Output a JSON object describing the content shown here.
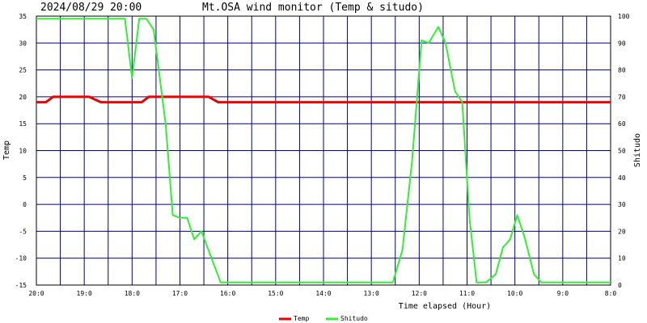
{
  "header": {
    "timestamp": "2024/08/29 20:00",
    "title": "Mt.OSA wind monitor (Temp & situdo)"
  },
  "chart_data": {
    "type": "line",
    "xlabel": "Time elapsed (Hour)",
    "ylabel_left": "Temp",
    "ylabel_right": "Shitudo",
    "x_range": [
      0,
      12
    ],
    "x_direction": "reversed (20:0 at left, 8:0 at right)",
    "x_tick_labels": [
      "20:0",
      "19:0",
      "18:0",
      "17:0",
      "16:0",
      "15:0",
      "14:0",
      "13:0",
      "12:0",
      "11:0",
      "10:0",
      "9:0",
      "8:0"
    ],
    "y_left_range": [
      -15,
      35
    ],
    "y_left_ticks": [
      "35",
      "30",
      "25",
      "20",
      "15",
      "10",
      "5",
      "0",
      "-5",
      "-10",
      "-15"
    ],
    "y_right_range": [
      0,
      100
    ],
    "y_right_ticks": [
      "100",
      "90",
      "80",
      "70",
      "60",
      "50",
      "40",
      "30",
      "20",
      "10",
      "0"
    ],
    "grid": true,
    "legend_position": "bottom-center",
    "series": [
      {
        "name": "Temp",
        "axis": "left",
        "color": "#ee0000",
        "points": [
          [
            0,
            19
          ],
          [
            0.2,
            19
          ],
          [
            0.35,
            20
          ],
          [
            1.1,
            20
          ],
          [
            1.35,
            19
          ],
          [
            2.2,
            19
          ],
          [
            2.35,
            20
          ],
          [
            3.6,
            20
          ],
          [
            3.8,
            19
          ],
          [
            12,
            19
          ]
        ]
      },
      {
        "name": "Shitudo",
        "axis": "right",
        "color": "#33ee33",
        "points": [
          [
            0,
            99
          ],
          [
            1.85,
            99
          ],
          [
            2.0,
            77
          ],
          [
            2.15,
            99
          ],
          [
            2.3,
            99
          ],
          [
            2.45,
            95
          ],
          [
            2.7,
            60
          ],
          [
            2.85,
            26
          ],
          [
            3.0,
            25
          ],
          [
            3.15,
            25
          ],
          [
            3.3,
            17
          ],
          [
            3.45,
            20
          ],
          [
            3.85,
            1
          ],
          [
            7.45,
            1
          ],
          [
            7.65,
            13
          ],
          [
            7.85,
            46
          ],
          [
            8.05,
            91
          ],
          [
            8.2,
            90
          ],
          [
            8.4,
            96
          ],
          [
            8.55,
            90
          ],
          [
            8.75,
            72
          ],
          [
            8.9,
            68
          ],
          [
            9.05,
            25
          ],
          [
            9.2,
            1
          ],
          [
            9.4,
            1
          ],
          [
            9.6,
            4
          ],
          [
            9.75,
            14
          ],
          [
            9.9,
            17
          ],
          [
            10.05,
            26
          ],
          [
            10.2,
            18
          ],
          [
            10.4,
            4
          ],
          [
            10.55,
            1
          ],
          [
            12,
            1
          ]
        ]
      }
    ]
  }
}
